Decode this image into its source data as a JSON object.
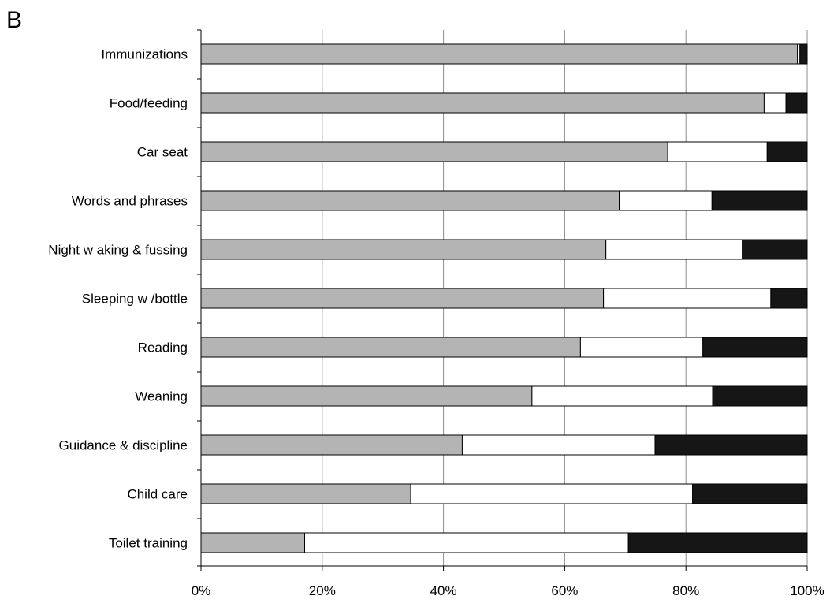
{
  "panel_label": "B",
  "colors": {
    "segment_1": "#b4b4b4",
    "segment_2": "#ffffff",
    "segment_3": "#161616",
    "gridline": "#8c8c8c",
    "axis": "#000000"
  },
  "chart_data": {
    "type": "bar",
    "orientation": "horizontal",
    "stacked": true,
    "title": "",
    "xlabel": "",
    "ylabel": "",
    "xlim": [
      0,
      100
    ],
    "x_ticks": [
      "0%",
      "20%",
      "40%",
      "60%",
      "80%",
      "100%"
    ],
    "x_tick_values": [
      0,
      20,
      40,
      60,
      80,
      100
    ],
    "grid": "vertical",
    "legend": "none",
    "categories": [
      "Immunizations",
      "Food/feeding",
      "Car seat",
      "Words and phrases",
      "Night w aking & fussing",
      "Sleeping w /bottle",
      "Reading",
      "Weaning",
      "Guidance & discipline",
      "Child care",
      "Toilet training"
    ],
    "series": [
      {
        "color": "#b4b4b4",
        "values": [
          98.4,
          92.9,
          77.0,
          69.0,
          66.8,
          66.4,
          62.6,
          54.6,
          43.1,
          34.6,
          17.1
        ]
      },
      {
        "color": "#ffffff",
        "values": [
          0.4,
          3.6,
          16.4,
          15.3,
          22.5,
          27.6,
          20.2,
          29.8,
          31.8,
          46.5,
          53.4
        ]
      },
      {
        "color": "#161616",
        "values": [
          1.2,
          3.5,
          6.6,
          15.7,
          10.7,
          6.0,
          17.2,
          15.6,
          25.1,
          18.9,
          29.5
        ]
      }
    ]
  }
}
